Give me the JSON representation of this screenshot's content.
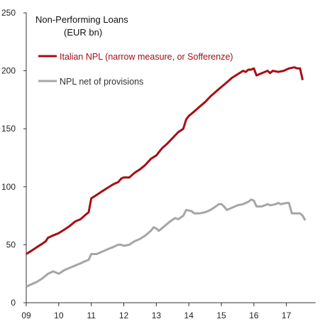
{
  "chart_data": {
    "type": "line",
    "title_line1": "Non-Performing Loans",
    "title_line2": "(EUR bn)",
    "xlabel": "",
    "ylabel": "",
    "xlim": [
      2009.0,
      2017.9
    ],
    "ylim": [
      0,
      250
    ],
    "yticks": [
      0,
      50,
      100,
      150,
      200,
      250
    ],
    "xticks": [
      {
        "value": 2009,
        "label": "09"
      },
      {
        "value": 2010,
        "label": "10"
      },
      {
        "value": 2011,
        "label": "11"
      },
      {
        "value": 2012,
        "label": "12"
      },
      {
        "value": 2013,
        "label": "13"
      },
      {
        "value": 2014,
        "label": "14"
      },
      {
        "value": 2015,
        "label": "15"
      },
      {
        "value": 2016,
        "label": "16"
      },
      {
        "value": 2017,
        "label": "17"
      }
    ],
    "grid": false,
    "legend_placement": "top-left",
    "series": [
      {
        "name": "Italian NPL (narrow measure, or Sofferenze)",
        "color": "#a50f15",
        "points": [
          [
            2009.0,
            42
          ],
          [
            2009.17,
            45
          ],
          [
            2009.33,
            48
          ],
          [
            2009.5,
            51
          ],
          [
            2009.6,
            53
          ],
          [
            2009.67,
            56
          ],
          [
            2009.83,
            58
          ],
          [
            2010.0,
            60
          ],
          [
            2010.17,
            63
          ],
          [
            2010.33,
            66
          ],
          [
            2010.5,
            70
          ],
          [
            2010.67,
            72
          ],
          [
            2010.83,
            76
          ],
          [
            2010.92,
            78
          ],
          [
            2011.0,
            90
          ],
          [
            2011.17,
            93
          ],
          [
            2011.33,
            96
          ],
          [
            2011.5,
            99
          ],
          [
            2011.67,
            102
          ],
          [
            2011.83,
            104
          ],
          [
            2011.92,
            107
          ],
          [
            2012.0,
            108
          ],
          [
            2012.17,
            108
          ],
          [
            2012.33,
            112
          ],
          [
            2012.5,
            115
          ],
          [
            2012.67,
            119
          ],
          [
            2012.83,
            124
          ],
          [
            2013.0,
            127
          ],
          [
            2013.17,
            133
          ],
          [
            2013.33,
            137
          ],
          [
            2013.5,
            142
          ],
          [
            2013.67,
            147
          ],
          [
            2013.83,
            150
          ],
          [
            2013.92,
            158
          ],
          [
            2014.0,
            161
          ],
          [
            2014.17,
            165
          ],
          [
            2014.33,
            169
          ],
          [
            2014.5,
            173
          ],
          [
            2014.67,
            178
          ],
          [
            2014.83,
            182
          ],
          [
            2015.0,
            186
          ],
          [
            2015.17,
            190
          ],
          [
            2015.33,
            194
          ],
          [
            2015.5,
            197
          ],
          [
            2015.67,
            200
          ],
          [
            2015.75,
            199
          ],
          [
            2015.83,
            201
          ],
          [
            2015.92,
            201
          ],
          [
            2016.0,
            202
          ],
          [
            2016.08,
            196
          ],
          [
            2016.25,
            198
          ],
          [
            2016.42,
            200
          ],
          [
            2016.5,
            198
          ],
          [
            2016.58,
            200
          ],
          [
            2016.75,
            199
          ],
          [
            2016.92,
            200
          ],
          [
            2017.08,
            202
          ],
          [
            2017.25,
            203
          ],
          [
            2017.33,
            202
          ],
          [
            2017.42,
            202
          ],
          [
            2017.5,
            192
          ]
        ]
      },
      {
        "name": "NPL net of provisions",
        "color": "#a6a6a6",
        "points": [
          [
            2009.0,
            14
          ],
          [
            2009.17,
            16
          ],
          [
            2009.33,
            18
          ],
          [
            2009.5,
            21
          ],
          [
            2009.67,
            25
          ],
          [
            2009.83,
            27
          ],
          [
            2010.0,
            25
          ],
          [
            2010.17,
            28
          ],
          [
            2010.33,
            30
          ],
          [
            2010.5,
            32
          ],
          [
            2010.67,
            34
          ],
          [
            2010.83,
            36
          ],
          [
            2010.92,
            37
          ],
          [
            2011.0,
            42
          ],
          [
            2011.17,
            42
          ],
          [
            2011.33,
            44
          ],
          [
            2011.5,
            46
          ],
          [
            2011.67,
            48
          ],
          [
            2011.83,
            50
          ],
          [
            2011.92,
            50
          ],
          [
            2012.0,
            49
          ],
          [
            2012.17,
            50
          ],
          [
            2012.33,
            53
          ],
          [
            2012.5,
            55
          ],
          [
            2012.67,
            58
          ],
          [
            2012.83,
            62
          ],
          [
            2012.92,
            65
          ],
          [
            2013.0,
            64
          ],
          [
            2013.08,
            62
          ],
          [
            2013.25,
            66
          ],
          [
            2013.42,
            70
          ],
          [
            2013.58,
            73
          ],
          [
            2013.67,
            72
          ],
          [
            2013.83,
            75
          ],
          [
            2013.92,
            80
          ],
          [
            2014.08,
            79
          ],
          [
            2014.17,
            77
          ],
          [
            2014.33,
            77
          ],
          [
            2014.5,
            78
          ],
          [
            2014.67,
            80
          ],
          [
            2014.83,
            83
          ],
          [
            2014.92,
            85
          ],
          [
            2015.0,
            85
          ],
          [
            2015.08,
            83
          ],
          [
            2015.17,
            80
          ],
          [
            2015.33,
            82
          ],
          [
            2015.5,
            84
          ],
          [
            2015.67,
            85
          ],
          [
            2015.83,
            87
          ],
          [
            2015.92,
            89
          ],
          [
            2016.0,
            88
          ],
          [
            2016.08,
            83
          ],
          [
            2016.25,
            83
          ],
          [
            2016.42,
            85
          ],
          [
            2016.5,
            84
          ],
          [
            2016.67,
            85
          ],
          [
            2016.75,
            86
          ],
          [
            2016.83,
            85
          ],
          [
            2017.0,
            86
          ],
          [
            2017.08,
            86
          ],
          [
            2017.17,
            77
          ],
          [
            2017.33,
            77
          ],
          [
            2017.42,
            77
          ],
          [
            2017.5,
            75
          ],
          [
            2017.58,
            71
          ]
        ]
      }
    ]
  }
}
